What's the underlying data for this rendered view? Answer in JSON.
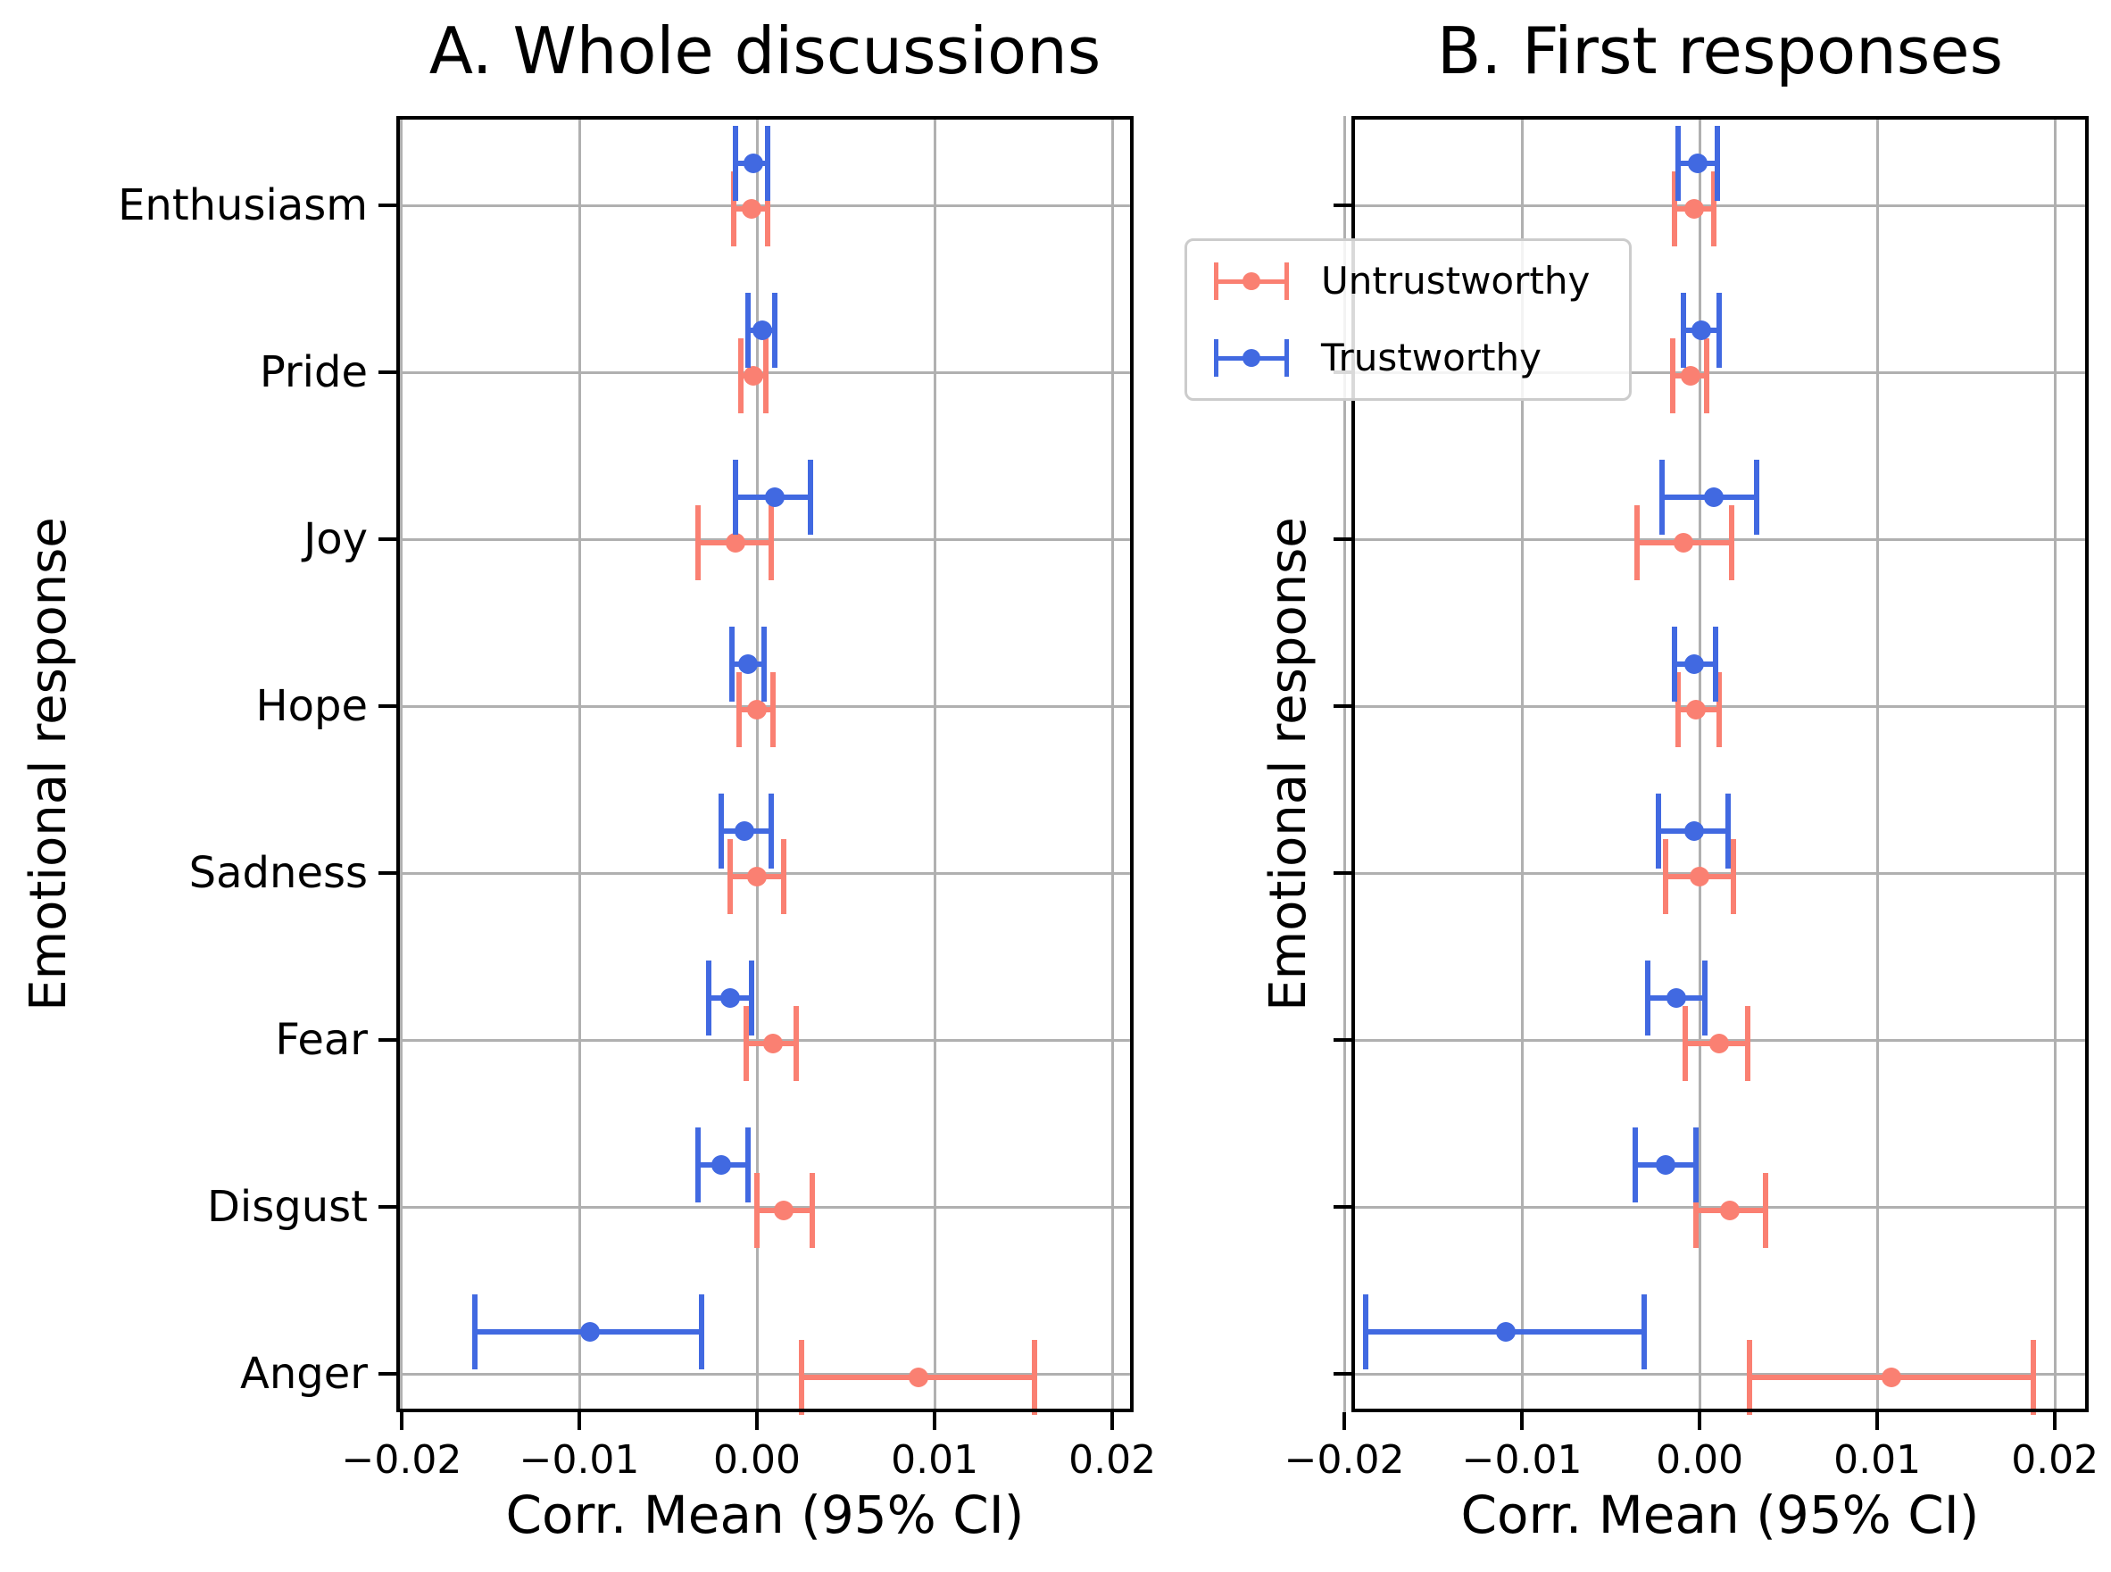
{
  "legend": {
    "entries": [
      {
        "label": "Untrustworthy",
        "color": "#FA8072"
      },
      {
        "label": "Trustworthy",
        "color": "#4169E1"
      }
    ]
  },
  "colors": {
    "untrustworthy": "#FA8072",
    "trustworthy": "#4169E1",
    "gridline": "#b0b0b0",
    "spine": "#000000"
  },
  "chart_data": [
    {
      "type": "scatter",
      "subtype": "forest-errorbar",
      "panel": "A",
      "title": "A. Whole discussions",
      "xlabel": "Corr. Mean (95% CI)",
      "ylabel": "Emotional response",
      "categories": [
        "Enthusiasm",
        "Pride",
        "Joy",
        "Hope",
        "Sadness",
        "Fear",
        "Disgust",
        "Anger"
      ],
      "xticks": [
        -0.02,
        -0.01,
        0,
        0.01,
        0.02
      ],
      "xtick_labels": [
        "−0.02",
        "−0.01",
        "0.00",
        "0.01",
        "0.02"
      ],
      "xlim": [
        -0.0203,
        0.0212
      ],
      "grid": true,
      "series": [
        {
          "name": "Untrustworthy",
          "color": "#FA8072",
          "means": [
            -0.0003,
            -0.0002,
            -0.0012,
            0.0,
            0.0,
            0.0009,
            0.0015,
            0.0091
          ],
          "ci_low": [
            -0.0013,
            -0.0009,
            -0.0033,
            -0.001,
            -0.0015,
            -0.0006,
            0.0,
            0.0025
          ],
          "ci_high": [
            0.0006,
            0.0005,
            0.0008,
            0.0009,
            0.0015,
            0.0022,
            0.0031,
            0.0156
          ]
        },
        {
          "name": "Trustworthy",
          "color": "#4169E1",
          "means": [
            -0.0002,
            0.0003,
            0.001,
            -0.0005,
            -0.0007,
            -0.0015,
            -0.002,
            -0.0094
          ],
          "ci_low": [
            -0.0012,
            -0.0005,
            -0.0012,
            -0.0014,
            -0.002,
            -0.0027,
            -0.0033,
            -0.0159
          ],
          "ci_high": [
            0.0006,
            0.001,
            0.003,
            0.0004,
            0.0008,
            -0.0003,
            -0.0005,
            -0.0031
          ]
        }
      ]
    },
    {
      "type": "scatter",
      "subtype": "forest-errorbar",
      "panel": "B",
      "title": "B. First responses",
      "xlabel": "Corr. Mean (95% CI)",
      "ylabel": "Emotional response",
      "categories": [
        "Enthusiasm",
        "Pride",
        "Joy",
        "Hope",
        "Sadness",
        "Fear",
        "Disgust",
        "Anger"
      ],
      "xticks": [
        -0.02,
        -0.01,
        0,
        0.01,
        0.02
      ],
      "xtick_labels": [
        "−0.02",
        "−0.01",
        "0.00",
        "0.01",
        "0.02"
      ],
      "xlim": [
        -0.0196,
        0.0219
      ],
      "grid": true,
      "series": [
        {
          "name": "Untrustworthy",
          "color": "#FA8072",
          "means": [
            -0.0003,
            -0.0005,
            -0.0009,
            -0.0002,
            0.0,
            0.0011,
            0.0017,
            0.0108
          ],
          "ci_low": [
            -0.0014,
            -0.0015,
            -0.0035,
            -0.0012,
            -0.0019,
            -0.0008,
            -0.0002,
            0.0028
          ],
          "ci_high": [
            0.0008,
            0.0004,
            0.0018,
            0.0011,
            0.0019,
            0.0027,
            0.0037,
            0.0188
          ]
        },
        {
          "name": "Trustworthy",
          "color": "#4169E1",
          "means": [
            -0.0001,
            0.0001,
            0.0008,
            -0.0003,
            -0.0003,
            -0.0013,
            -0.0019,
            -0.0109
          ],
          "ci_low": [
            -0.0012,
            -0.0009,
            -0.0021,
            -0.0014,
            -0.0023,
            -0.0029,
            -0.0036,
            -0.0188
          ],
          "ci_high": [
            0.001,
            0.0011,
            0.0032,
            0.0009,
            0.0016,
            0.0003,
            -0.0002,
            -0.0031
          ]
        }
      ]
    }
  ]
}
